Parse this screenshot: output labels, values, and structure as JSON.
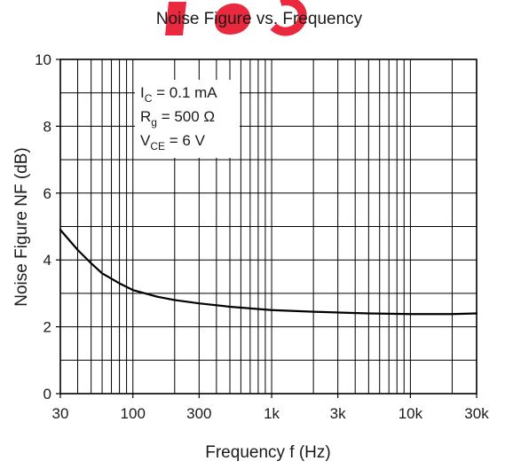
{
  "chart_data": {
    "type": "line",
    "title": "Noise Figure vs. Frequency",
    "xlabel": "Frequency f (Hz)",
    "ylabel": "Noise Figure NF (dB)",
    "x_scale": "log",
    "xlim": [
      30,
      30000
    ],
    "ylim": [
      0,
      10
    ],
    "grid": true,
    "x_ticks": [
      {
        "value": 30,
        "label": "30"
      },
      {
        "value": 100,
        "label": "100"
      },
      {
        "value": 300,
        "label": "300"
      },
      {
        "value": 1000,
        "label": "1k"
      },
      {
        "value": 3000,
        "label": "3k"
      },
      {
        "value": 10000,
        "label": "10k"
      },
      {
        "value": 30000,
        "label": "30k"
      }
    ],
    "y_ticks": [
      {
        "value": 0,
        "label": "0"
      },
      {
        "value": 2,
        "label": "2"
      },
      {
        "value": 4,
        "label": "4"
      },
      {
        "value": 6,
        "label": "6"
      },
      {
        "value": 8,
        "label": "8"
      },
      {
        "value": 10,
        "label": "10"
      }
    ],
    "annotations": [
      {
        "main": "I",
        "sub": "C",
        "rest": " = 0.1 mA"
      },
      {
        "main": "R",
        "sub": "g",
        "rest": " = 500 Ω"
      },
      {
        "main": "V",
        "sub": "CE",
        "rest": " = 6 V"
      }
    ],
    "series": [
      {
        "color": "#000000",
        "x": [
          30,
          40,
          50,
          60,
          80,
          100,
          150,
          200,
          300,
          500,
          1000,
          2000,
          5000,
          10000,
          20000,
          30000
        ],
        "y": [
          4.9,
          4.3,
          3.9,
          3.6,
          3.3,
          3.1,
          2.9,
          2.8,
          2.7,
          2.6,
          2.5,
          2.45,
          2.4,
          2.38,
          2.38,
          2.4
        ]
      }
    ]
  },
  "watermark": {
    "text": "sgb",
    "color": "#e8122a"
  }
}
